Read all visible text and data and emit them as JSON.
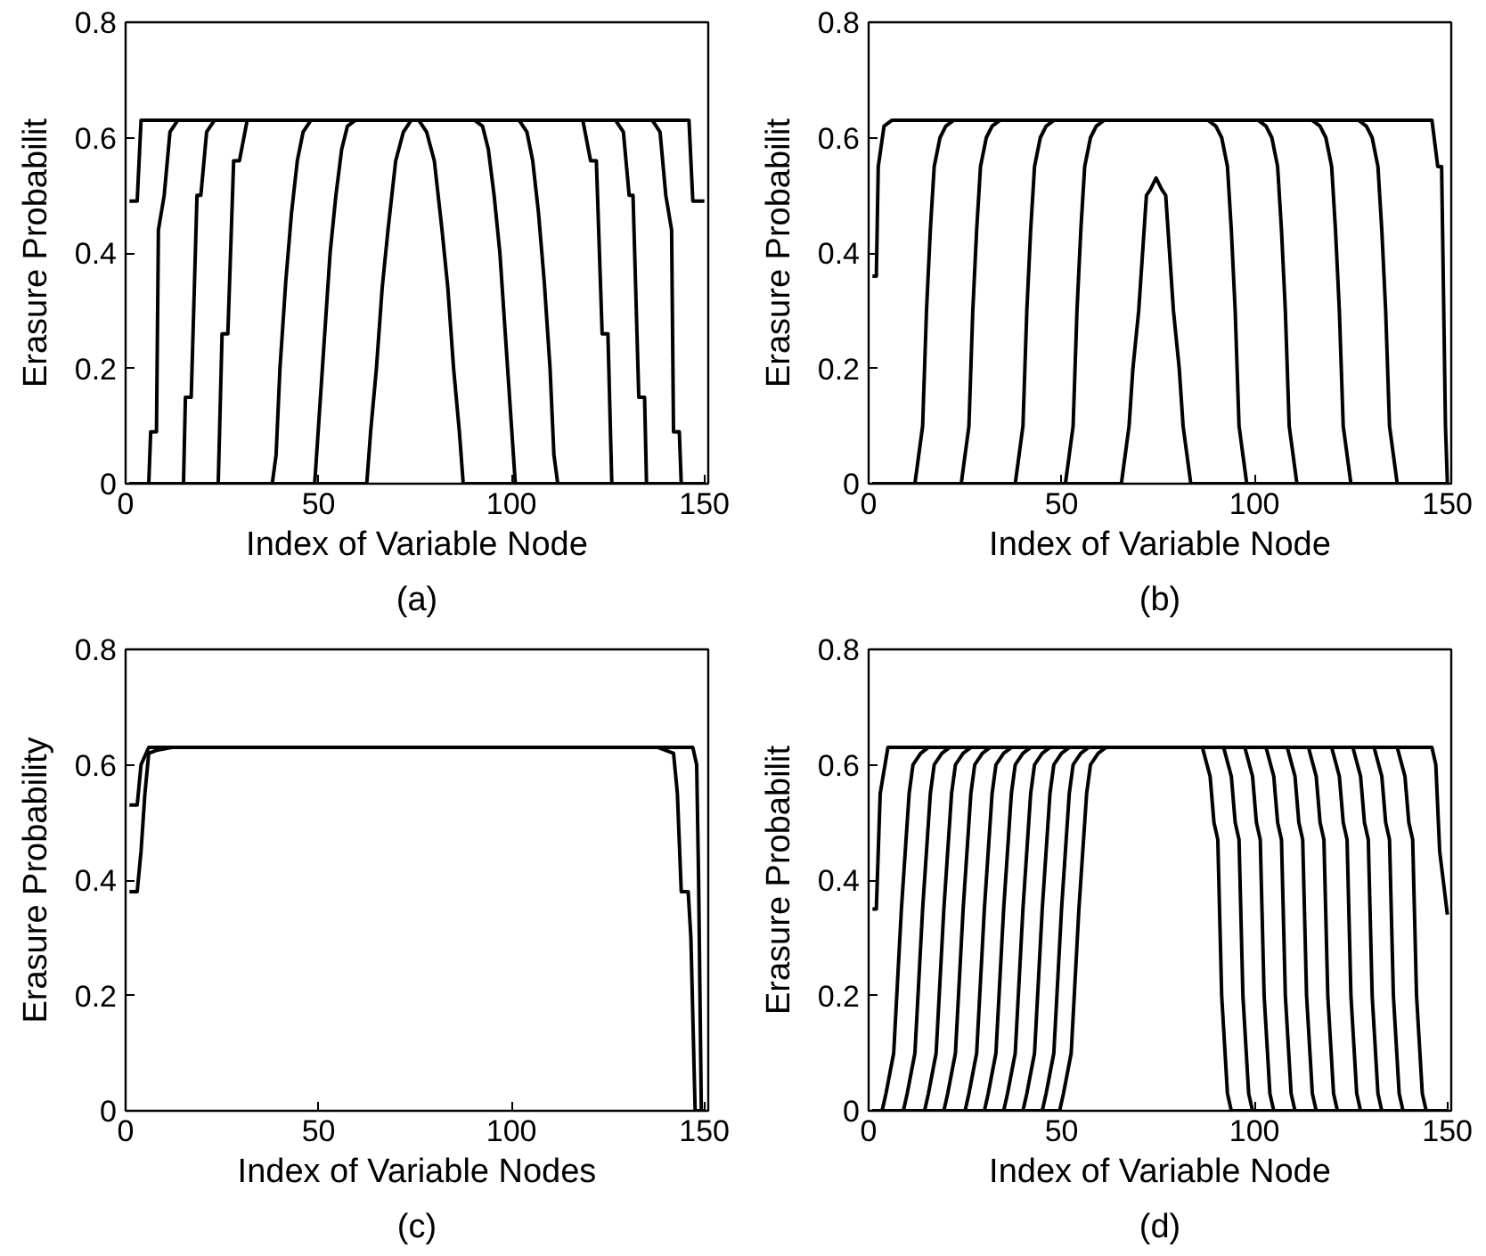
{
  "chart_data": [
    {
      "type": "line",
      "xlabel": "Index of Variable Node",
      "ylabel": "Erasure Probabilit",
      "annotations": [
        "(a)"
      ],
      "xlim": [
        0,
        151
      ],
      "ylim": [
        0,
        0.8
      ],
      "xticks": [
        0,
        50,
        100,
        150
      ],
      "yticks": [
        0,
        0.2,
        0.4,
        0.6,
        0.8
      ],
      "grid": false,
      "marker": "none",
      "line_style": "solid",
      "series": [
        {
          "color": "#000000",
          "x": [
            1,
            3,
            4,
            146,
            147,
            150
          ],
          "values": [
            0.49,
            0.49,
            0.63,
            0.63,
            0.49,
            0.49
          ]
        },
        {
          "color": "#000000",
          "x": [
            1,
            6,
            6.5,
            8,
            8.5,
            10,
            11.5,
            13.5,
            136.5,
            138.5,
            140,
            141.5,
            142,
            143.5,
            144,
            150
          ],
          "values": [
            0,
            0,
            0.09,
            0.09,
            0.44,
            0.5,
            0.61,
            0.63,
            0.63,
            0.61,
            0.5,
            0.44,
            0.09,
            0.09,
            0,
            0
          ]
        },
        {
          "color": "#000000",
          "x": [
            1,
            15,
            15.5,
            17,
            18.5,
            19.5,
            21,
            23,
            127,
            129,
            130.5,
            131.5,
            133,
            134.5,
            135,
            150
          ],
          "values": [
            0,
            0,
            0.15,
            0.15,
            0.5,
            0.5,
            0.61,
            0.63,
            0.63,
            0.61,
            0.5,
            0.5,
            0.15,
            0.15,
            0,
            0
          ]
        },
        {
          "color": "#000000",
          "x": [
            1,
            24,
            25,
            26.5,
            28,
            29.5,
            31.5,
            118.5,
            120.5,
            122,
            123.5,
            125,
            126,
            150
          ],
          "values": [
            0,
            0,
            0.26,
            0.26,
            0.56,
            0.56,
            0.63,
            0.63,
            0.56,
            0.56,
            0.26,
            0.26,
            0,
            0
          ]
        },
        {
          "color": "#000000",
          "x": [
            1,
            38,
            39,
            40,
            41.5,
            43,
            44.5,
            46,
            48,
            102,
            104,
            105.5,
            107,
            108.5,
            110,
            111,
            112,
            150
          ],
          "values": [
            0,
            0,
            0.05,
            0.2,
            0.35,
            0.47,
            0.56,
            0.61,
            0.63,
            0.63,
            0.61,
            0.56,
            0.47,
            0.35,
            0.2,
            0.05,
            0,
            0
          ]
        },
        {
          "color": "#000000",
          "x": [
            1,
            49,
            50,
            51.5,
            53,
            54.5,
            56,
            57.5,
            59.5,
            90.5,
            92.5,
            94,
            95.5,
            97,
            98.5,
            100,
            101,
            150
          ],
          "values": [
            0,
            0,
            0.1,
            0.25,
            0.4,
            0.5,
            0.58,
            0.62,
            0.63,
            0.63,
            0.62,
            0.58,
            0.5,
            0.4,
            0.25,
            0.1,
            0,
            0
          ]
        },
        {
          "color": "#000000",
          "x": [
            1,
            62.5,
            63.5,
            65,
            66.5,
            68,
            70,
            72,
            74,
            76,
            78,
            80,
            82,
            83.5,
            85,
            86.5,
            87.5,
            150
          ],
          "values": [
            0,
            0,
            0.09,
            0.2,
            0.34,
            0.44,
            0.56,
            0.61,
            0.63,
            0.63,
            0.61,
            0.56,
            0.44,
            0.34,
            0.2,
            0.09,
            0,
            0
          ]
        }
      ]
    },
    {
      "type": "line",
      "xlabel": "Index of Variable Node",
      "ylabel": "Erasure Probabilit",
      "annotations": [
        "(b)"
      ],
      "xlim": [
        0,
        151
      ],
      "ylim": [
        0,
        0.8
      ],
      "xticks": [
        0,
        50,
        100,
        150
      ],
      "yticks": [
        0,
        0.2,
        0.4,
        0.6,
        0.8
      ],
      "grid": false,
      "marker": "none",
      "line_style": "solid",
      "series": [
        {
          "color": "#000000",
          "x": [
            1,
            2,
            2.5,
            4,
            6,
            146,
            147.5,
            148.5,
            149.5,
            150
          ],
          "values": [
            0.36,
            0.36,
            0.55,
            0.62,
            0.63,
            0.63,
            0.55,
            0.55,
            0.1,
            0
          ]
        },
        {
          "color": "#000000",
          "x": [
            1,
            12,
            13,
            14,
            15,
            16,
            17,
            18.5,
            20,
            22,
            127,
            129,
            130.5,
            132,
            133,
            134,
            135,
            136,
            137,
            150
          ],
          "values": [
            0,
            0,
            0.05,
            0.1,
            0.3,
            0.44,
            0.55,
            0.6,
            0.62,
            0.63,
            0.63,
            0.62,
            0.6,
            0.55,
            0.44,
            0.3,
            0.1,
            0.05,
            0,
            0
          ]
        },
        {
          "color": "#000000",
          "x": [
            1,
            24,
            25,
            26,
            27,
            28,
            29,
            30.5,
            32,
            34,
            115,
            117,
            118.5,
            120,
            121,
            122,
            123,
            124,
            125,
            150
          ],
          "values": [
            0,
            0,
            0.05,
            0.1,
            0.3,
            0.44,
            0.55,
            0.6,
            0.62,
            0.63,
            0.63,
            0.62,
            0.6,
            0.55,
            0.44,
            0.3,
            0.1,
            0.05,
            0,
            0
          ]
        },
        {
          "color": "#000000",
          "x": [
            1,
            38,
            39,
            40,
            41,
            42,
            43,
            44.5,
            46,
            48,
            101,
            103,
            104.5,
            106,
            107,
            108,
            109,
            110,
            111,
            150
          ],
          "values": [
            0,
            0,
            0.05,
            0.1,
            0.3,
            0.44,
            0.55,
            0.6,
            0.62,
            0.63,
            0.63,
            0.62,
            0.6,
            0.55,
            0.44,
            0.3,
            0.1,
            0.05,
            0,
            0
          ]
        },
        {
          "color": "#000000",
          "x": [
            1,
            51,
            52,
            53,
            54,
            55,
            56,
            57.5,
            59,
            61,
            88,
            90,
            91.5,
            93,
            94,
            95,
            96,
            97,
            98,
            150
          ],
          "values": [
            0,
            0,
            0.05,
            0.1,
            0.3,
            0.44,
            0.55,
            0.6,
            0.62,
            0.63,
            0.63,
            0.62,
            0.6,
            0.55,
            0.44,
            0.3,
            0.1,
            0.05,
            0,
            0
          ]
        },
        {
          "color": "#000000",
          "x": [
            1,
            65.5,
            66.5,
            67.5,
            68.5,
            70,
            71,
            72,
            73,
            74.5,
            76,
            77,
            78,
            79,
            80.5,
            81.5,
            82.5,
            83.5,
            150
          ],
          "values": [
            0,
            0,
            0.05,
            0.1,
            0.2,
            0.3,
            0.4,
            0.5,
            0.51,
            0.53,
            0.51,
            0.5,
            0.4,
            0.3,
            0.2,
            0.1,
            0.05,
            0,
            0
          ]
        }
      ]
    },
    {
      "type": "line",
      "xlabel": "Index of Variable Nodes",
      "ylabel": "Erasure Probability",
      "annotations": [
        "(c)"
      ],
      "xlim": [
        0,
        151
      ],
      "ylim": [
        0,
        0.8
      ],
      "xticks": [
        0,
        50,
        100,
        150
      ],
      "yticks": [
        0,
        0.2,
        0.4,
        0.6,
        0.8
      ],
      "grid": false,
      "marker": "none",
      "line_style": "solid",
      "series": [
        {
          "color": "#000000",
          "x": [
            1,
            3,
            4,
            6,
            147,
            148,
            148.5,
            149.2,
            150
          ],
          "values": [
            0.53,
            0.53,
            0.6,
            0.63,
            0.63,
            0.6,
            0.4,
            0,
            0
          ]
        },
        {
          "color": "#000000",
          "x": [
            1,
            3,
            4,
            5,
            6,
            8,
            12,
            138,
            140,
            142,
            143,
            144,
            145.8,
            146.5,
            147.6,
            150
          ],
          "values": [
            0.38,
            0.38,
            0.45,
            0.55,
            0.62,
            0.625,
            0.63,
            0.63,
            0.625,
            0.62,
            0.55,
            0.38,
            0.38,
            0.3,
            0,
            0
          ]
        }
      ]
    },
    {
      "type": "line",
      "xlabel": "Index of Variable Node",
      "ylabel": "Erasure Probabilit",
      "annotations": [
        "(d)"
      ],
      "xlim": [
        0,
        151
      ],
      "ylim": [
        0,
        0.8
      ],
      "xticks": [
        0,
        50,
        100,
        150
      ],
      "yticks": [
        0,
        0.2,
        0.4,
        0.6,
        0.8
      ],
      "grid": false,
      "marker": "none",
      "line_style": "solid",
      "series": [
        {
          "color": "#000000",
          "x": [
            1,
            2,
            3,
            5,
            146,
            147,
            148,
            150
          ],
          "values": [
            0.35,
            0.35,
            0.55,
            0.63,
            0.63,
            0.6,
            0.45,
            0.34
          ]
        },
        {
          "color": "#000000",
          "x": [
            1,
            3.5,
            4.5,
            6.5,
            8.5,
            10.5,
            11.5,
            13.5,
            15.5,
            137,
            139,
            140,
            141,
            142,
            143.5,
            144.5,
            150
          ],
          "values": [
            0,
            0,
            0.03,
            0.1,
            0.35,
            0.55,
            0.6,
            0.62,
            0.63,
            0.63,
            0.58,
            0.5,
            0.47,
            0.2,
            0.03,
            0,
            0
          ]
        },
        {
          "color": "#000000",
          "x": [
            1,
            9,
            10,
            12,
            14,
            16,
            17,
            19,
            21,
            131,
            133,
            134,
            135,
            136,
            137.5,
            138.5,
            150
          ],
          "values": [
            0,
            0,
            0.03,
            0.1,
            0.35,
            0.55,
            0.6,
            0.62,
            0.63,
            0.63,
            0.58,
            0.5,
            0.47,
            0.2,
            0.03,
            0,
            0
          ]
        },
        {
          "color": "#000000",
          "x": [
            1,
            14.5,
            15.5,
            17.5,
            19.5,
            21.5,
            22.5,
            24.5,
            26.5,
            125.5,
            127.5,
            128.5,
            129.5,
            130.5,
            132,
            133,
            150
          ],
          "values": [
            0,
            0,
            0.03,
            0.1,
            0.35,
            0.55,
            0.6,
            0.62,
            0.63,
            0.63,
            0.58,
            0.5,
            0.47,
            0.2,
            0.03,
            0,
            0
          ]
        },
        {
          "color": "#000000",
          "x": [
            1,
            19.5,
            20.5,
            22.5,
            24.5,
            26.5,
            27.5,
            29.5,
            31.5,
            120,
            122,
            123,
            124,
            125,
            126.5,
            127.5,
            150
          ],
          "values": [
            0,
            0,
            0.03,
            0.1,
            0.35,
            0.55,
            0.6,
            0.62,
            0.63,
            0.63,
            0.58,
            0.5,
            0.47,
            0.2,
            0.03,
            0,
            0
          ]
        },
        {
          "color": "#000000",
          "x": [
            1,
            25,
            26,
            28,
            30,
            32,
            33,
            35,
            37,
            114,
            116,
            117,
            118,
            119,
            120.5,
            121.5,
            150
          ],
          "values": [
            0,
            0,
            0.03,
            0.1,
            0.35,
            0.55,
            0.6,
            0.62,
            0.63,
            0.63,
            0.58,
            0.5,
            0.47,
            0.2,
            0.03,
            0,
            0
          ]
        },
        {
          "color": "#000000",
          "x": [
            1,
            30,
            31,
            33,
            35,
            37,
            38,
            40,
            42,
            108.5,
            110.5,
            111.5,
            112.5,
            113.5,
            115,
            116,
            150
          ],
          "values": [
            0,
            0,
            0.03,
            0.1,
            0.35,
            0.55,
            0.6,
            0.62,
            0.63,
            0.63,
            0.58,
            0.5,
            0.47,
            0.2,
            0.03,
            0,
            0
          ]
        },
        {
          "color": "#000000",
          "x": [
            1,
            35,
            36,
            38,
            40,
            42,
            43,
            45,
            47,
            103,
            105,
            106,
            107,
            108,
            109.5,
            110.5,
            150
          ],
          "values": [
            0,
            0,
            0.03,
            0.1,
            0.35,
            0.55,
            0.6,
            0.62,
            0.63,
            0.63,
            0.58,
            0.5,
            0.47,
            0.2,
            0.03,
            0,
            0
          ]
        },
        {
          "color": "#000000",
          "x": [
            1,
            40,
            41,
            43,
            45,
            47,
            48,
            50,
            52,
            97.5,
            99.5,
            100.5,
            101.5,
            102.5,
            104,
            105,
            150
          ],
          "values": [
            0,
            0,
            0.03,
            0.1,
            0.35,
            0.55,
            0.6,
            0.62,
            0.63,
            0.63,
            0.58,
            0.5,
            0.47,
            0.2,
            0.03,
            0,
            0
          ]
        },
        {
          "color": "#000000",
          "x": [
            1,
            45,
            46,
            48,
            50,
            52,
            53,
            55,
            57,
            92,
            94,
            95,
            96,
            97,
            98.5,
            99.5,
            150
          ],
          "values": [
            0,
            0,
            0.03,
            0.1,
            0.35,
            0.55,
            0.6,
            0.62,
            0.63,
            0.63,
            0.58,
            0.5,
            0.47,
            0.2,
            0.03,
            0,
            0
          ]
        },
        {
          "color": "#000000",
          "x": [
            1,
            49.5,
            50.5,
            52.5,
            54.5,
            56.5,
            57.5,
            59.5,
            61.5,
            86.5,
            88.5,
            89.5,
            90.5,
            91.5,
            93,
            94,
            150
          ],
          "values": [
            0,
            0,
            0.03,
            0.1,
            0.35,
            0.55,
            0.6,
            0.62,
            0.63,
            0.63,
            0.58,
            0.5,
            0.47,
            0.2,
            0.03,
            0,
            0
          ]
        }
      ]
    }
  ]
}
